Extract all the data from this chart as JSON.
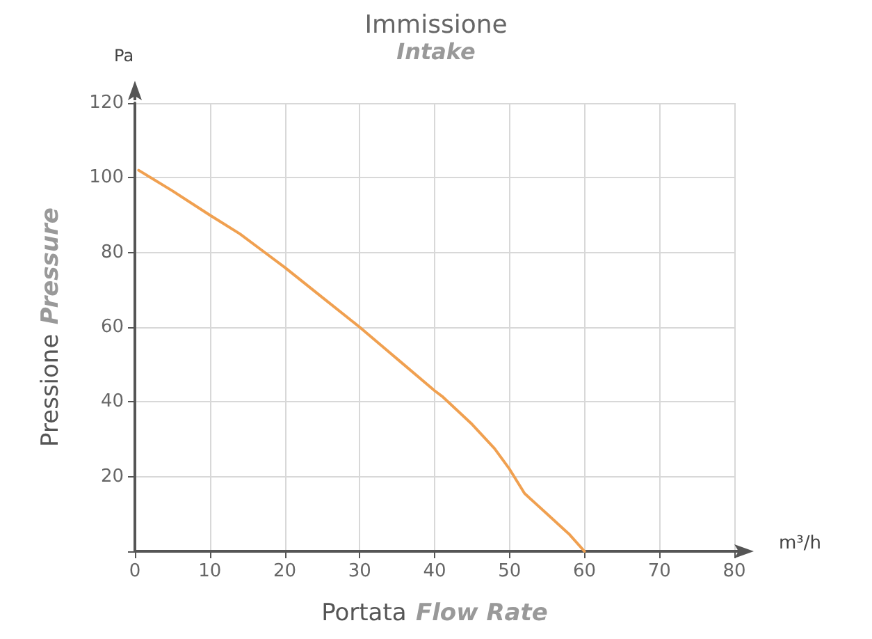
{
  "chart_data": {
    "type": "line",
    "title": "Immissione",
    "subtitle": "Intake",
    "xlabel": "Portata Flow Rate",
    "ylabel": "Pressione Pressure",
    "annotations": [
      "Pa",
      "m³/h"
    ],
    "x": [
      0.5,
      5,
      10,
      14,
      17,
      20,
      25,
      30,
      35,
      40,
      41,
      45,
      48,
      50,
      52,
      55,
      58,
      60
    ],
    "series": [
      {
        "color": "#f0a050",
        "values": [
          102,
          96.5,
          90,
          85,
          80.5,
          76,
          68,
          60,
          51.5,
          43,
          41.5,
          34,
          27.5,
          22,
          15.5,
          10,
          4.5,
          0
        ]
      }
    ],
    "xlim": [
      0,
      80
    ],
    "xticks": [
      0,
      10,
      20,
      30,
      40,
      50,
      60,
      70,
      80
    ],
    "ylim": [
      0,
      120
    ],
    "yticks": [
      {
        "value": 0,
        "label": null
      },
      20,
      40,
      60,
      80,
      100,
      120
    ],
    "grid": true,
    "marker": "none",
    "line_style": "solid"
  }
}
